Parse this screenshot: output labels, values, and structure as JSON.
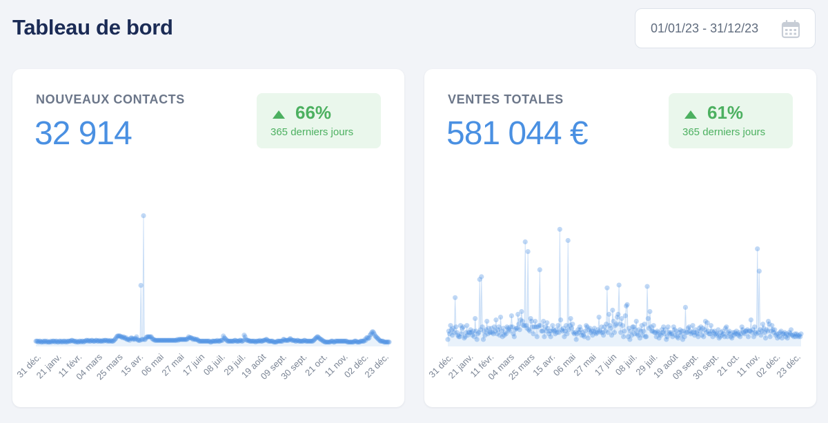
{
  "header": {
    "title": "Tableau de bord",
    "date_range": "01/01/23 - 31/12/23",
    "calendar_icon": "calendar-icon"
  },
  "colors": {
    "accent": "#4a90e2",
    "positive": "#4cb060",
    "positive_bg": "#eaf7ec",
    "title": "#1b2b55"
  },
  "cards": [
    {
      "label": "NOUVEAUX CONTACTS",
      "value": "32 914",
      "trend_icon": "arrow-up-icon",
      "trend_pct": "66%",
      "trend_period": "365 derniers jours"
    },
    {
      "label": "VENTES TOTALES",
      "value": "581 044 €",
      "trend_icon": "arrow-up-icon",
      "trend_pct": "61%",
      "trend_period": "365 derniers jours"
    }
  ],
  "chart_data": [
    {
      "type": "scatter",
      "title": "",
      "x_tick_labels": [
        "31 déc.",
        "21 janv.",
        "11 févr.",
        "04 mars",
        "25 mars",
        "15 avr.",
        "06 mai",
        "27 mai",
        "17 juin",
        "08 juil.",
        "29 juil.",
        "19 août",
        "09 sept.",
        "30 sept.",
        "21 oct.",
        "11 nov.",
        "02 déc.",
        "23 déc."
      ],
      "grid": false,
      "legend": "none",
      "values": [
        6,
        6,
        6,
        5,
        6,
        6,
        5,
        5,
        6,
        5,
        6,
        6,
        5,
        6,
        5,
        5,
        5,
        6,
        5,
        6,
        6,
        6,
        5,
        6,
        6,
        5,
        5,
        6,
        6,
        5,
        6,
        5,
        6,
        6,
        5,
        6,
        5,
        6,
        6,
        6,
        6,
        7,
        7,
        6,
        6,
        6,
        5,
        6,
        5,
        5,
        6,
        6,
        5,
        6,
        6,
        5,
        6,
        6,
        7,
        7,
        6,
        7,
        6,
        6,
        7,
        7,
        6,
        6,
        6,
        7,
        7,
        6,
        6,
        7,
        6,
        6,
        6,
        7,
        6,
        7,
        7,
        7,
        6,
        7,
        6,
        6,
        7,
        6,
        6,
        6,
        7,
        8,
        9,
        11,
        12,
        12,
        12,
        12,
        11,
        11,
        10,
        11,
        10,
        9,
        10,
        8,
        8,
        8,
        7,
        9,
        10,
        9,
        8,
        9,
        8,
        9,
        11,
        8,
        7,
        7,
        7,
        70,
        8,
        8,
        150,
        8,
        8,
        10,
        11,
        11,
        11,
        11,
        11,
        11,
        9,
        8,
        8,
        7,
        7,
        7,
        7,
        7,
        7,
        7,
        7,
        7,
        7,
        7,
        7,
        7,
        7,
        7,
        7,
        7,
        7,
        7,
        7,
        7,
        7,
        7,
        7,
        7,
        7,
        8,
        7,
        8,
        8,
        8,
        8,
        8,
        8,
        8,
        8,
        8,
        8,
        9,
        11,
        10,
        10,
        10,
        9,
        8,
        9,
        8,
        8,
        8,
        8,
        7,
        6,
        6,
        6,
        6,
        6,
        6,
        6,
        6,
        6,
        6,
        6,
        6,
        6,
        5,
        5,
        6,
        6,
        6,
        6,
        6,
        6,
        7,
        6,
        6,
        6,
        7,
        7,
        7,
        12,
        10,
        9,
        8,
        7,
        6,
        6,
        6,
        6,
        6,
        6,
        6,
        6,
        7,
        7,
        6,
        6,
        6,
        6,
        7,
        7,
        6,
        6,
        7,
        13,
        11,
        8,
        7,
        7,
        7,
        6,
        6,
        6,
        6,
        6,
        6,
        6,
        5,
        6,
        6,
        6,
        6,
        7,
        6,
        6,
        6,
        7,
        7,
        7,
        8,
        8,
        7,
        6,
        6,
        6,
        6,
        6,
        6,
        5,
        5,
        5,
        5,
        6,
        6,
        6,
        6,
        6,
        6,
        6,
        8,
        8,
        7,
        7,
        7,
        7,
        7,
        8,
        9,
        8,
        7,
        7,
        7,
        7,
        6,
        6,
        7,
        7,
        6,
        6,
        6,
        6,
        6,
        6,
        7,
        7,
        6,
        6,
        6,
        6,
        6,
        6,
        6,
        6,
        6,
        7,
        8,
        9,
        10,
        11,
        11,
        10,
        9,
        8,
        8,
        7,
        6,
        6,
        5,
        5,
        5,
        5,
        5,
        5,
        5,
        6,
        6,
        6,
        5,
        5,
        6,
        6,
        6,
        6,
        6,
        6,
        6,
        6,
        6,
        6,
        6,
        6,
        6,
        6,
        5,
        5,
        5,
        5,
        5,
        5,
        5,
        5,
        6,
        6,
        6,
        5,
        5,
        5,
        5,
        6,
        6,
        6,
        6,
        6,
        8,
        7,
        10,
        10,
        9,
        10,
        13,
        14,
        16,
        17,
        16,
        14,
        12,
        11,
        10,
        9,
        8,
        7,
        6,
        6,
        6,
        6,
        5,
        5,
        5,
        5,
        5,
        5,
        5
      ],
      "ylim": [
        0,
        160
      ]
    },
    {
      "type": "scatter",
      "title": "",
      "x_tick_labels": [
        "31 déc.",
        "21 janv.",
        "11 févr.",
        "04 mars",
        "25 mars",
        "15 avr.",
        "06 mai",
        "27 mai",
        "17 juin",
        "08 juil.",
        "29 juil.",
        "19 août",
        "09 sept.",
        "30 sept.",
        "21 oct.",
        "11 nov.",
        "02 déc.",
        "23 déc."
      ],
      "grid": false,
      "legend": "none",
      "values": [
        10,
        22,
        18,
        30,
        24,
        16,
        26,
        20,
        70,
        28,
        20,
        16,
        14,
        14,
        30,
        18,
        26,
        28,
        12,
        14,
        20,
        30,
        16,
        20,
        20,
        24,
        20,
        16,
        22,
        14,
        40,
        22,
        10,
        18,
        20,
        96,
        24,
        100,
        28,
        10,
        22,
        16,
        24,
        36,
        18,
        26,
        20,
        20,
        26,
        20,
        18,
        28,
        22,
        38,
        18,
        24,
        28,
        16,
        42,
        22,
        14,
        26,
        16,
        20,
        18,
        28,
        26,
        24,
        22,
        28,
        44,
        28,
        18,
        14,
        24,
        26,
        26,
        46,
        32,
        24,
        38,
        50,
        36,
        30,
        30,
        150,
        30,
        26,
        136,
        24,
        22,
        40,
        36,
        28,
        18,
        28,
        36,
        28,
        14,
        28,
        30,
        110,
        30,
        22,
        22,
        36,
        14,
        28,
        22,
        34,
        26,
        18,
        22,
        14,
        22,
        30,
        24,
        22,
        18,
        24,
        20,
        30,
        20,
        168,
        38,
        24,
        22,
        26,
        14,
        22,
        30,
        18,
        152,
        24,
        30,
        40,
        26,
        32,
        20,
        18,
        20,
        10,
        18,
        24,
        20,
        28,
        24,
        16,
        20,
        16,
        14,
        22,
        30,
        28,
        12,
        24,
        26,
        20,
        22,
        16,
        22,
        26,
        20,
        18,
        20,
        24,
        42,
        22,
        20,
        28,
        20,
        16,
        28,
        22,
        32,
        84,
        20,
        46,
        30,
        26,
        16,
        52,
        36,
        20,
        30,
        32,
        42,
        46,
        88,
        32,
        20,
        40,
        30,
        14,
        22,
        44,
        58,
        60,
        14,
        26,
        10,
        22,
        16,
        28,
        28,
        18,
        24,
        36,
        18,
        16,
        24,
        12,
        22,
        30,
        16,
        22,
        32,
        14,
        14,
        86,
        40,
        26,
        50,
        28,
        22,
        22,
        30,
        20,
        20,
        14,
        22,
        20,
        12,
        18,
        16,
        24,
        20,
        28,
        18,
        24,
        10,
        14,
        28,
        20,
        18,
        20,
        18,
        14,
        28,
        24,
        16,
        22,
        14,
        12,
        20,
        24,
        16,
        22,
        10,
        22,
        14,
        56,
        20,
        20,
        26,
        28,
        22,
        18,
        20,
        30,
        20,
        16,
        24,
        20,
        18,
        14,
        26,
        22,
        28,
        16,
        26,
        14,
        24,
        36,
        20,
        34,
        22,
        18,
        18,
        30,
        22,
        14,
        20,
        22,
        18,
        16,
        18,
        24,
        12,
        14,
        20,
        16,
        22,
        18,
        14,
        26,
        28,
        14,
        20,
        22,
        18,
        14,
        12,
        20,
        16,
        20,
        18,
        22,
        18,
        16,
        20,
        14,
        18,
        28,
        24,
        20,
        18,
        22,
        22,
        24,
        14,
        22,
        22,
        38,
        20,
        24,
        14,
        28,
        20,
        18,
        140,
        20,
        108,
        24,
        16,
        22,
        32,
        26,
        20,
        12,
        24,
        22,
        36,
        32,
        14,
        22,
        30,
        24,
        20,
        24,
        16,
        18,
        12,
        18,
        14,
        20,
        22,
        12,
        18,
        18,
        20,
        14,
        18,
        12,
        16,
        20,
        18,
        24,
        16,
        16,
        14,
        18,
        14,
        18,
        16,
        14,
        16,
        14,
        18
      ],
      "ylim": [
        0,
        200
      ]
    }
  ]
}
